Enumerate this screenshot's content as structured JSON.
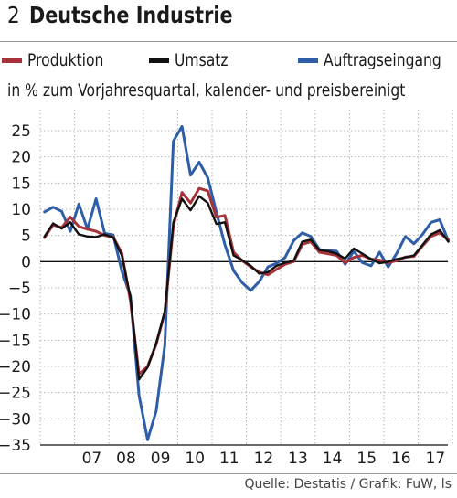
{
  "figure": {
    "number": "2",
    "title": "Deutsche Industrie",
    "subtitle": "in % zum Vorjahresquartal, kalender- und preisbereinigt",
    "source": "Quelle: Destatis / Grafik: FuW, ls"
  },
  "chart_data": {
    "type": "line",
    "title": "Deutsche Industrie",
    "subtitle": "in % zum Vorjahresquartal, kalender- und preisbereinigt",
    "xlabel": "",
    "ylabel": "",
    "ylim": [
      -35,
      25
    ],
    "yticks": [
      25,
      20,
      15,
      10,
      5,
      0,
      -5,
      -10,
      -15,
      -20,
      -25,
      -30,
      -35
    ],
    "x_tick_labels": [
      "07",
      "08",
      "09",
      "10",
      "11",
      "12",
      "13",
      "14",
      "15",
      "16",
      "17"
    ],
    "x_quarters": [
      "2006Q1",
      "2006Q2",
      "2006Q3",
      "2006Q4",
      "2007Q1",
      "2007Q2",
      "2007Q3",
      "2007Q4",
      "2008Q1",
      "2008Q2",
      "2008Q3",
      "2008Q4",
      "2009Q1",
      "2009Q2",
      "2009Q3",
      "2009Q4",
      "2010Q1",
      "2010Q2",
      "2010Q3",
      "2010Q4",
      "2011Q1",
      "2011Q2",
      "2011Q3",
      "2011Q4",
      "2012Q1",
      "2012Q2",
      "2012Q3",
      "2012Q4",
      "2013Q1",
      "2013Q2",
      "2013Q3",
      "2013Q4",
      "2014Q1",
      "2014Q2",
      "2014Q3",
      "2014Q4",
      "2015Q1",
      "2015Q2",
      "2015Q3",
      "2015Q4",
      "2016Q1",
      "2016Q2",
      "2016Q3",
      "2016Q4",
      "2017Q1",
      "2017Q2",
      "2017Q3",
      "2017Q4"
    ],
    "grid": true,
    "legend_position": "top",
    "series": [
      {
        "name": "Produktion",
        "color": "#a8323a",
        "values": [
          4.6,
          7.0,
          6.5,
          8.5,
          6.7,
          6.2,
          5.8,
          5.0,
          4.7,
          1.6,
          -7.5,
          -21.5,
          -20.0,
          -15.8,
          -9.7,
          6.8,
          13.2,
          11.2,
          14.0,
          13.5,
          8.5,
          8.8,
          1.8,
          0.2,
          -1.0,
          -2.0,
          -2.5,
          -1.5,
          -0.5,
          0.0,
          3.3,
          3.8,
          1.8,
          1.5,
          1.2,
          -0.2,
          0.8,
          1.2,
          0.5,
          0.3,
          -0.2,
          0.2,
          0.9,
          1.0,
          3.0,
          4.8,
          5.5,
          4.2
        ]
      },
      {
        "name": "Umsatz",
        "color": "#111111",
        "values": [
          4.8,
          7.3,
          6.3,
          7.5,
          5.2,
          4.8,
          4.7,
          5.2,
          4.6,
          1.2,
          -6.8,
          -22.5,
          -20.2,
          -15.5,
          -9.5,
          7.5,
          12.0,
          9.8,
          12.5,
          11.2,
          7.2,
          7.5,
          1.2,
          0.3,
          -0.8,
          -2.3,
          -2.0,
          -0.8,
          -0.2,
          0.2,
          3.8,
          4.2,
          2.2,
          2.0,
          1.5,
          0.6,
          2.5,
          1.5,
          0.5,
          -0.3,
          0.0,
          0.5,
          0.8,
          1.2,
          3.2,
          5.2,
          6.0,
          3.8
        ]
      },
      {
        "name": "Auftragseingang",
        "color": "#2f5ea8",
        "values": [
          9.5,
          10.4,
          9.6,
          5.8,
          11.0,
          6.2,
          12.0,
          5.4,
          5.1,
          -1.8,
          -6.5,
          -25.5,
          -34.0,
          -28.5,
          -16.0,
          23.0,
          25.8,
          16.5,
          19.0,
          16.0,
          9.5,
          3.2,
          -1.7,
          -4.0,
          -5.5,
          -3.8,
          -1.0,
          -0.3,
          0.8,
          4.0,
          5.5,
          4.8,
          2.3,
          2.1,
          2.0,
          -0.5,
          2.0,
          -0.2,
          -0.8,
          1.8,
          -1.0,
          1.6,
          4.8,
          3.4,
          5.2,
          7.5,
          8.0,
          4.0
        ]
      }
    ]
  }
}
